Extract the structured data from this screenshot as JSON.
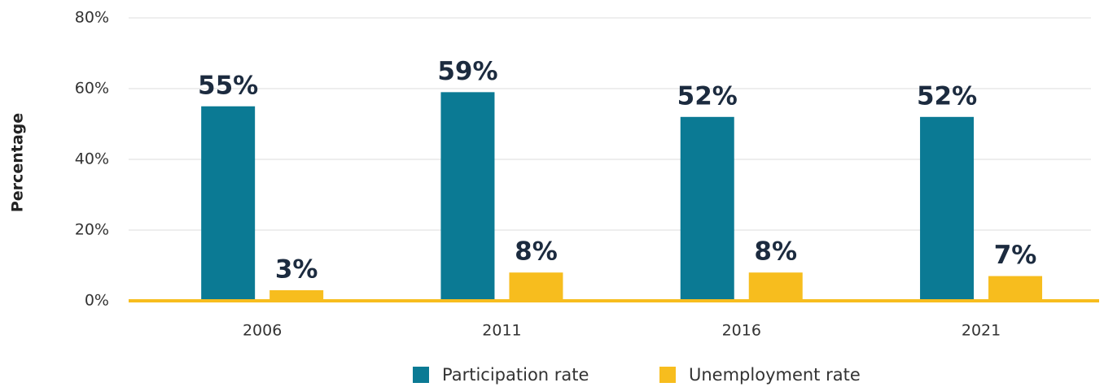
{
  "chart_data": {
    "type": "bar",
    "categories": [
      "2006",
      "2011",
      "2016",
      "2021"
    ],
    "y_label": "Percentage",
    "series": [
      {
        "name": "Participation rate",
        "color": "#0b7a94",
        "values": [
          55,
          59,
          52,
          52
        ],
        "value_labels": [
          "55%",
          "59%",
          "52%",
          "52%"
        ]
      },
      {
        "name": "Unemployment rate",
        "color": "#f7bd1e",
        "values": [
          3,
          8,
          8,
          7
        ],
        "value_labels": [
          "3%",
          "8%",
          "8%",
          "7%"
        ]
      }
    ],
    "ylim": [
      0,
      80
    ],
    "yticks": [
      {
        "value": 0,
        "label": "0%"
      },
      {
        "value": 20,
        "label": "20%"
      },
      {
        "value": 40,
        "label": "40%"
      },
      {
        "value": 60,
        "label": "60%"
      },
      {
        "value": 80,
        "label": "80%"
      }
    ],
    "grid": true,
    "legend": "bottom"
  }
}
